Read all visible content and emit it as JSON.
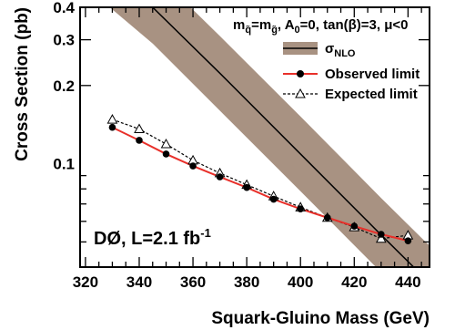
{
  "chart_data": {
    "type": "line",
    "title": "",
    "header": "mq̃=mg̃, A₀=0, tan(β)=3, μ<0",
    "header_parts": {
      "m": "m",
      "q": "q̃",
      "eq": "=m",
      "g": "g̃",
      "a": ", A",
      "a_sub": "0",
      "rest": "=0, tan(β)=3, μ<0"
    },
    "xlabel": "Squark-Gluino Mass (GeV)",
    "ylabel": "Cross Section (pb)",
    "xlim": [
      318,
      448
    ],
    "ylim": [
      0.04,
      0.4
    ],
    "yscale": "log",
    "x_ticks": [
      320,
      340,
      360,
      380,
      400,
      420,
      440
    ],
    "x_tick_labels": [
      "320",
      "340",
      "360",
      "380",
      "400",
      "420",
      "440"
    ],
    "y_ticks": [
      0.1,
      0.2,
      0.3,
      0.4
    ],
    "y_tick_labels": [
      "0.1",
      "0.2",
      "0.3",
      "0.4"
    ],
    "legend_position": "top-right",
    "legend": {
      "sigma_main": "σ",
      "sigma_sub": "NLO",
      "observed": "Observed limit",
      "expected": "Expected limit"
    },
    "annotation": {
      "main": "DØ, L=2.1 fb",
      "sup": "-1"
    },
    "series": [
      {
        "name": "σNLO",
        "style": "band",
        "x": [
          318,
          345,
          370,
          400,
          430,
          448
        ],
        "central": [
          0.69,
          0.4,
          0.223,
          0.109,
          0.0532,
          0.0348
        ],
        "band_low": [
          0.5,
          0.29,
          0.16,
          0.0784,
          0.0382,
          0.025
        ],
        "band_high": [
          0.95,
          0.556,
          0.31,
          0.152,
          0.0738,
          0.0483
        ],
        "color": "#a89282"
      },
      {
        "name": "Observed limit",
        "style": "solid-markers",
        "x": [
          330,
          340,
          350,
          360,
          370,
          380,
          390,
          400,
          410,
          420,
          430,
          440
        ],
        "y": [
          0.138,
          0.123,
          0.109,
          0.098,
          0.089,
          0.081,
          0.073,
          0.067,
          0.062,
          0.0575,
          0.0535,
          0.0505
        ],
        "color": "#e8302a",
        "marker_color": "#000000"
      },
      {
        "name": "Expected limit",
        "style": "dashed-open-triangles",
        "x": [
          330,
          340,
          350,
          360,
          370,
          380,
          390,
          400,
          410,
          420,
          430,
          440
        ],
        "y": [
          0.148,
          0.136,
          0.119,
          0.103,
          0.092,
          0.083,
          0.075,
          0.068,
          0.062,
          0.057,
          0.0515,
          0.053
        ],
        "color": "#000000"
      }
    ]
  }
}
